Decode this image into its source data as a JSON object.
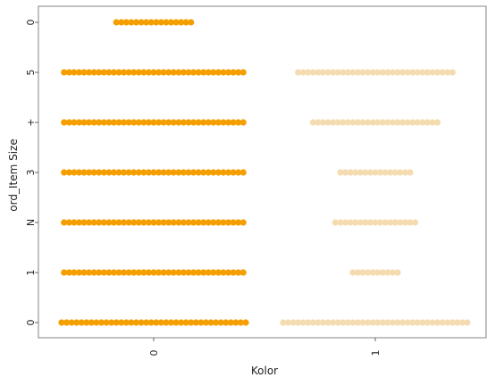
{
  "chart_data": {
    "type": "scatter",
    "style": "swarm",
    "xlabel": "Kolor",
    "ylabel": "ord_Item Size",
    "x_categories": [
      "0",
      "1"
    ],
    "y_tick_labels": [
      "0",
      "1",
      "N",
      "3",
      "+",
      "5",
      "0"
    ],
    "grid": false,
    "legend": "none",
    "series": [
      {
        "category": "0",
        "color": "#f59e00",
        "points": [
          {
            "y_index": 0,
            "count": 38
          },
          {
            "y_index": 1,
            "count": 37
          },
          {
            "y_index": 2,
            "count": 37
          },
          {
            "y_index": 3,
            "count": 37
          },
          {
            "y_index": 4,
            "count": 37
          },
          {
            "y_index": 5,
            "count": 37
          },
          {
            "y_index": 6,
            "count": 16
          }
        ]
      },
      {
        "category": "1",
        "color": "#f5dcb0",
        "points": [
          {
            "y_index": 0,
            "count": 38
          },
          {
            "y_index": 1,
            "count": 10
          },
          {
            "y_index": 2,
            "count": 17
          },
          {
            "y_index": 3,
            "count": 15
          },
          {
            "y_index": 4,
            "count": 26
          },
          {
            "y_index": 5,
            "count": 32
          }
        ]
      }
    ]
  }
}
